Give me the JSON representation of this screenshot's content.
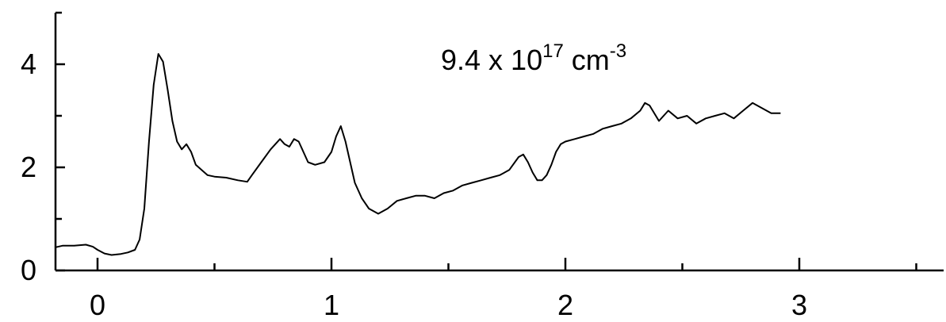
{
  "chart_data": {
    "type": "line",
    "title": "",
    "xlabel": "",
    "ylabel": "",
    "xlim": [
      -0.18,
      3.6
    ],
    "ylim": [
      0,
      5
    ],
    "x_ticks_labeled": [
      0,
      1,
      2,
      3
    ],
    "x_ticks_minor": [
      0.5,
      1.5,
      2.5,
      3.5
    ],
    "y_ticks_labeled": [
      0,
      2,
      4
    ],
    "y_ticks_minor": [
      1,
      3,
      5
    ],
    "grid": false,
    "annotation": {
      "base": "9.4 x 10",
      "exponent": "17",
      "unit": " cm",
      "unit_exponent": "-3"
    },
    "series": [
      {
        "x": [
          -0.18,
          -0.15,
          -0.1,
          -0.05,
          -0.02,
          0.0,
          0.03,
          0.06,
          0.1,
          0.13,
          0.16,
          0.18,
          0.2,
          0.22,
          0.24,
          0.26,
          0.28,
          0.3,
          0.32,
          0.34,
          0.36,
          0.38,
          0.4,
          0.42,
          0.45,
          0.47,
          0.5,
          0.55,
          0.6,
          0.64,
          0.66,
          0.7,
          0.74,
          0.78,
          0.8,
          0.82,
          0.84,
          0.86,
          0.88,
          0.9,
          0.93,
          0.97,
          1.0,
          1.02,
          1.04,
          1.06,
          1.08,
          1.1,
          1.13,
          1.16,
          1.2,
          1.24,
          1.28,
          1.32,
          1.36,
          1.4,
          1.44,
          1.48,
          1.52,
          1.56,
          1.6,
          1.64,
          1.68,
          1.72,
          1.76,
          1.8,
          1.82,
          1.84,
          1.86,
          1.88,
          1.9,
          1.92,
          1.94,
          1.96,
          1.98,
          2.0,
          2.04,
          2.08,
          2.12,
          2.16,
          2.2,
          2.24,
          2.28,
          2.32,
          2.34,
          2.36,
          2.4,
          2.44,
          2.48,
          2.52,
          2.56,
          2.6,
          2.64,
          2.68,
          2.72,
          2.76,
          2.8,
          2.84,
          2.88,
          2.92
        ],
        "y": [
          0.45,
          0.48,
          0.48,
          0.5,
          0.46,
          0.4,
          0.33,
          0.3,
          0.32,
          0.35,
          0.4,
          0.6,
          1.2,
          2.5,
          3.6,
          4.2,
          4.05,
          3.5,
          2.9,
          2.5,
          2.35,
          2.45,
          2.3,
          2.05,
          1.93,
          1.85,
          1.82,
          1.8,
          1.75,
          1.72,
          1.85,
          2.1,
          2.35,
          2.55,
          2.45,
          2.4,
          2.55,
          2.5,
          2.3,
          2.1,
          2.05,
          2.1,
          2.3,
          2.6,
          2.8,
          2.5,
          2.1,
          1.7,
          1.4,
          1.2,
          1.1,
          1.2,
          1.35,
          1.4,
          1.45,
          1.45,
          1.4,
          1.5,
          1.55,
          1.65,
          1.7,
          1.75,
          1.8,
          1.85,
          1.95,
          2.2,
          2.25,
          2.1,
          1.9,
          1.75,
          1.75,
          1.85,
          2.05,
          2.3,
          2.45,
          2.5,
          2.55,
          2.6,
          2.65,
          2.75,
          2.8,
          2.85,
          2.95,
          3.1,
          3.25,
          3.2,
          2.9,
          3.1,
          2.95,
          3.0,
          2.85,
          2.95,
          3.0,
          3.05,
          2.95,
          3.1,
          3.25,
          3.15,
          3.05,
          3.05
        ]
      }
    ]
  }
}
